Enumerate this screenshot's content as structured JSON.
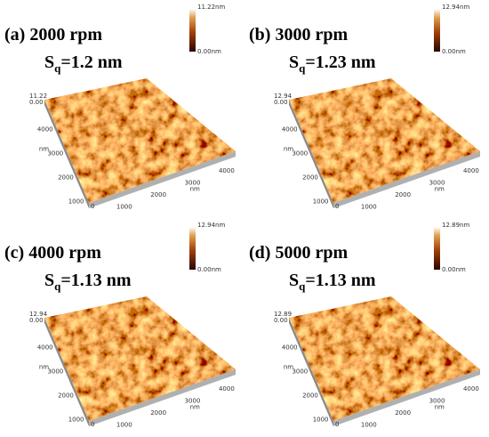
{
  "panels": [
    {
      "label": "(a) 2000 rpm",
      "sq_symbol": "S",
      "sq_sub": "q",
      "sq_value": "=1.2 nm",
      "colorbar_max": "11.22nm",
      "colorbar_min": "0.00nm",
      "z_max": "11.22",
      "z_min": "0.00",
      "y_ticks": [
        "4000",
        "3000",
        "2000",
        "1000"
      ],
      "x_ticks": [
        "1000",
        "2000",
        "3000",
        "4000"
      ],
      "origin": "0",
      "unit": "nm"
    },
    {
      "label": "(b) 3000 rpm",
      "sq_symbol": "S",
      "sq_sub": "q",
      "sq_value": "=1.23 nm",
      "colorbar_max": "12.94nm",
      "colorbar_min": "0.00nm",
      "z_max": "12.94",
      "z_min": "0.00",
      "y_ticks": [
        "4000",
        "3000",
        "2000",
        "1000"
      ],
      "x_ticks": [
        "1000",
        "2000",
        "3000",
        "4000"
      ],
      "origin": "0",
      "unit": "nm"
    },
    {
      "label": "(c) 4000 rpm",
      "sq_symbol": "S",
      "sq_sub": "q",
      "sq_value": "=1.13 nm",
      "colorbar_max": "12.94nm",
      "colorbar_min": "0.00nm",
      "z_max": "12.94",
      "z_min": "0.00",
      "y_ticks": [
        "4000",
        "3000",
        "2000",
        "1000"
      ],
      "x_ticks": [
        "1000",
        "2000",
        "3000",
        "4000"
      ],
      "origin": "0",
      "unit": "nm"
    },
    {
      "label": "(d) 5000 rpm",
      "sq_symbol": "S",
      "sq_sub": "q",
      "sq_value": "=1.13 nm",
      "colorbar_max": "12.89nm",
      "colorbar_min": "0.00nm",
      "z_max": "12.89",
      "z_min": "0.00",
      "y_ticks": [
        "4000",
        "3000",
        "2000",
        "1000"
      ],
      "x_ticks": [
        "1000",
        "2000",
        "3000",
        "4000"
      ],
      "origin": "0",
      "unit": "nm"
    }
  ]
}
